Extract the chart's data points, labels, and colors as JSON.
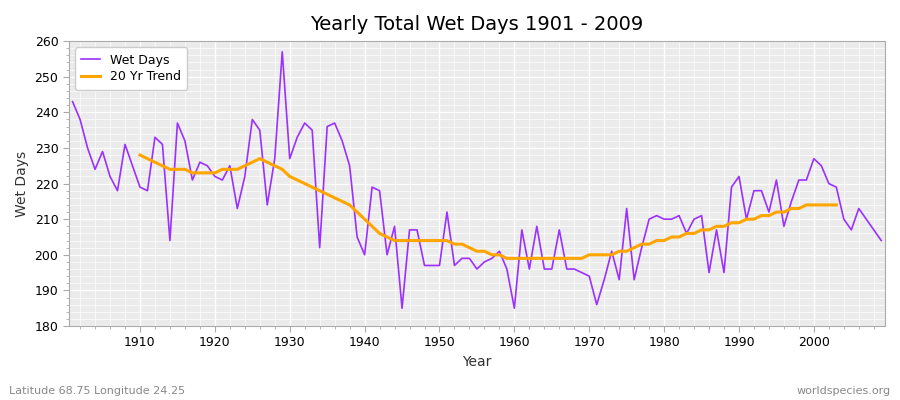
{
  "title": "Yearly Total Wet Days 1901 - 2009",
  "xlabel": "Year",
  "ylabel": "Wet Days",
  "subtitle": "Latitude 68.75 Longitude 24.25",
  "watermark": "worldspecies.org",
  "years": [
    1901,
    1902,
    1903,
    1904,
    1905,
    1906,
    1907,
    1908,
    1909,
    1910,
    1911,
    1912,
    1913,
    1914,
    1915,
    1916,
    1917,
    1918,
    1919,
    1920,
    1921,
    1922,
    1923,
    1924,
    1925,
    1926,
    1927,
    1928,
    1929,
    1930,
    1931,
    1932,
    1933,
    1934,
    1935,
    1936,
    1937,
    1938,
    1939,
    1940,
    1941,
    1942,
    1943,
    1944,
    1945,
    1946,
    1947,
    1948,
    1949,
    1950,
    1951,
    1952,
    1953,
    1954,
    1955,
    1956,
    1957,
    1958,
    1959,
    1960,
    1961,
    1962,
    1963,
    1964,
    1965,
    1966,
    1967,
    1968,
    1969,
    1970,
    1971,
    1972,
    1973,
    1974,
    1975,
    1976,
    1977,
    1978,
    1979,
    1980,
    1981,
    1982,
    1983,
    1984,
    1985,
    1986,
    1987,
    1988,
    1989,
    1990,
    1991,
    1992,
    1993,
    1994,
    1995,
    1996,
    1997,
    1998,
    1999,
    2000,
    2001,
    2002,
    2003,
    2004,
    2005,
    2006,
    2007,
    2008,
    2009
  ],
  "wet_days": [
    243,
    238,
    230,
    224,
    229,
    222,
    218,
    231,
    225,
    219,
    218,
    233,
    231,
    204,
    237,
    232,
    221,
    226,
    225,
    222,
    221,
    225,
    213,
    222,
    238,
    235,
    214,
    227,
    257,
    227,
    233,
    237,
    235,
    202,
    236,
    237,
    232,
    225,
    205,
    200,
    219,
    218,
    200,
    208,
    185,
    207,
    207,
    197,
    197,
    197,
    212,
    197,
    199,
    199,
    196,
    198,
    199,
    201,
    196,
    185,
    207,
    196,
    208,
    196,
    196,
    207,
    196,
    196,
    195,
    194,
    186,
    193,
    201,
    193,
    213,
    193,
    202,
    210,
    211,
    210,
    210,
    211,
    206,
    210,
    211,
    195,
    207,
    195,
    219,
    222,
    210,
    218,
    218,
    212,
    221,
    208,
    215,
    221,
    221,
    227,
    225,
    220,
    219,
    210,
    207,
    213,
    210,
    207,
    204
  ],
  "trend": [
    null,
    null,
    null,
    null,
    null,
    null,
    null,
    null,
    null,
    228,
    227,
    226,
    225,
    224,
    224,
    224,
    223,
    223,
    223,
    223,
    224,
    224,
    224,
    225,
    226,
    227,
    226,
    225,
    224,
    222,
    221,
    220,
    219,
    218,
    217,
    216,
    215,
    214,
    212,
    210,
    208,
    206,
    205,
    204,
    204,
    204,
    204,
    204,
    204,
    204,
    204,
    203,
    203,
    202,
    201,
    201,
    200,
    200,
    199,
    199,
    199,
    199,
    199,
    199,
    199,
    199,
    199,
    199,
    199,
    200,
    200,
    200,
    200,
    201,
    201,
    202,
    203,
    203,
    204,
    204,
    205,
    205,
    206,
    206,
    207,
    207,
    208,
    208,
    209,
    209,
    210,
    210,
    211,
    211,
    212,
    212,
    213,
    213,
    214,
    214,
    214,
    214,
    214,
    null,
    null,
    null,
    null,
    null,
    null
  ],
  "wet_days_color": "#9B30FF",
  "trend_color": "#FFA500",
  "background_color": "#FFFFFF",
  "plot_bg_color": "#EBEBEB",
  "ylim": [
    180,
    260
  ],
  "xlim": [
    1901,
    2009
  ],
  "yticks": [
    180,
    190,
    200,
    210,
    220,
    230,
    240,
    250,
    260
  ],
  "xticks": [
    1910,
    1920,
    1930,
    1940,
    1950,
    1960,
    1970,
    1980,
    1990,
    2000
  ]
}
